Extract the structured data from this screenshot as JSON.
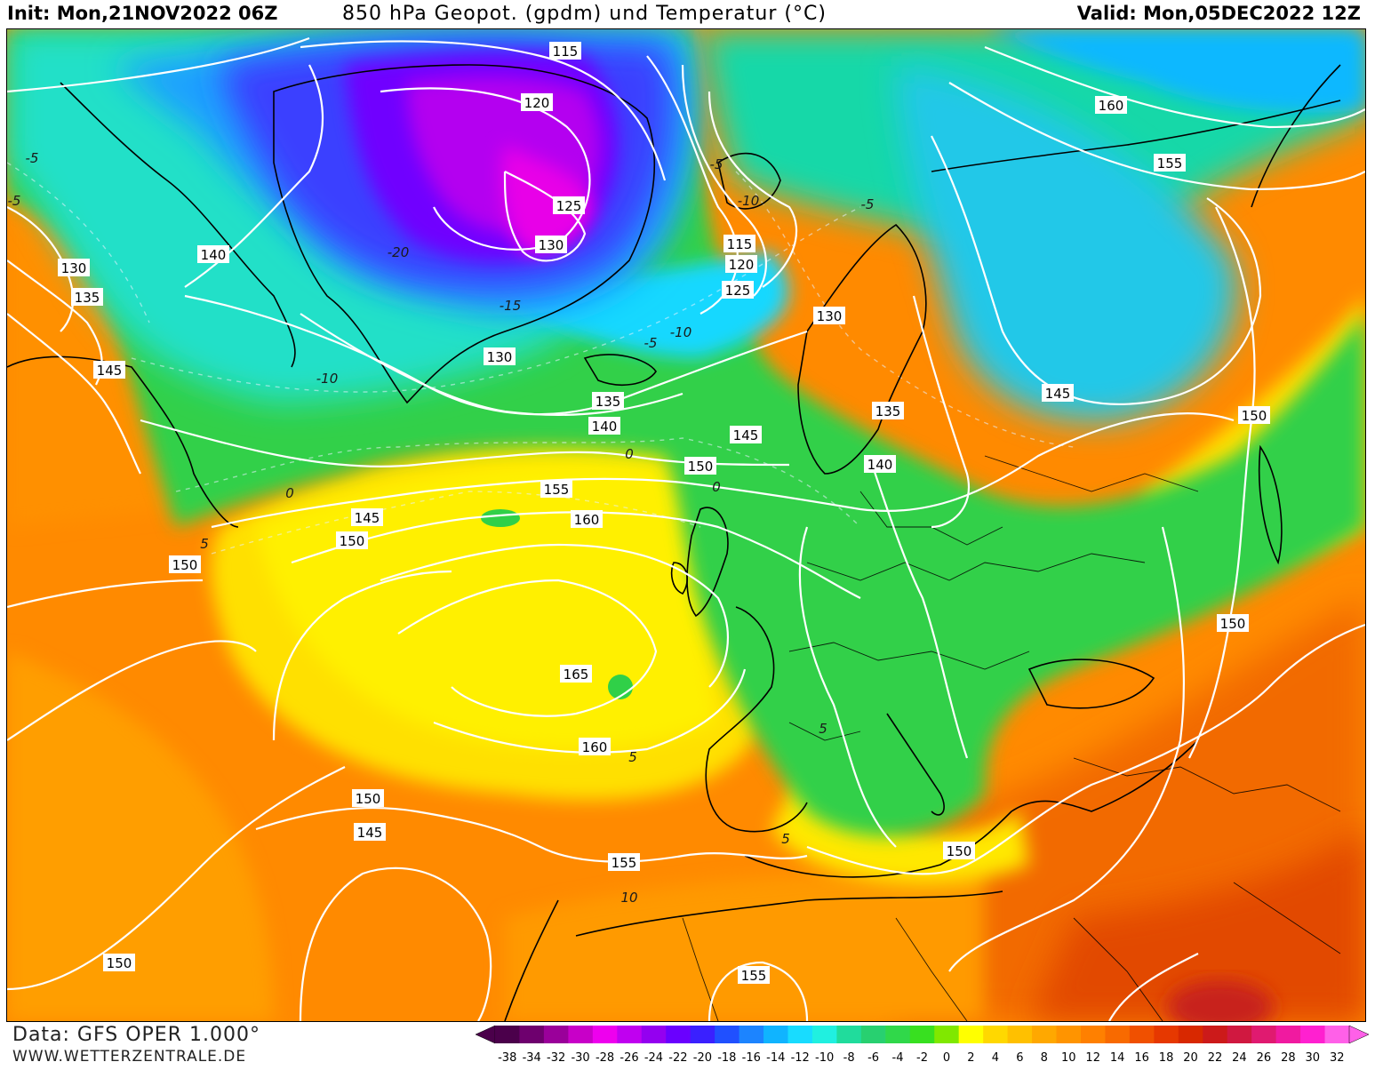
{
  "header": {
    "init": "Init: Mon,21NOV2022 06Z",
    "title": "850 hPa Geopot. (gpdm) und Temperatur (°C)",
    "valid": "Valid: Mon,05DEC2022 12Z"
  },
  "footer": {
    "source": "Data: GFS OPER 1.000°",
    "website": "WWW.WETTERZENTRALE.DE"
  },
  "legend": {
    "values": [
      "-38",
      "-34",
      "-32",
      "-30",
      "-28",
      "-26",
      "-24",
      "-22",
      "-20",
      "-18",
      "-16",
      "-14",
      "-12",
      "-10",
      "-8",
      "-6",
      "-4",
      "-2",
      "0",
      "2",
      "4",
      "6",
      "8",
      "10",
      "12",
      "14",
      "16",
      "18",
      "20",
      "22",
      "24",
      "26",
      "28",
      "30",
      "32"
    ],
    "colors": [
      "#4b004b",
      "#6e006e",
      "#9a009a",
      "#c800c8",
      "#ee00ee",
      "#c000f0",
      "#9400f0",
      "#6a00ff",
      "#3a20ff",
      "#2050ff",
      "#1c84ff",
      "#10b4ff",
      "#18dcff",
      "#20f0e0",
      "#20dc9c",
      "#28d070",
      "#30d84a",
      "#38e020",
      "#80e800",
      "#ffff00",
      "#ffd800",
      "#ffc000",
      "#ffa800",
      "#ff9400",
      "#ff8000",
      "#f86a00",
      "#f05000",
      "#e63800",
      "#d82800",
      "#cc1a1a",
      "#d01840",
      "#e01a70",
      "#f01aa0",
      "#ff20d0",
      "#ff60e8"
    ]
  },
  "map": {
    "geopotential_labels": [
      {
        "text": "115",
        "where": "north greenland"
      },
      {
        "text": "120",
        "where": "greenland"
      },
      {
        "text": "125",
        "where": "greenland centre"
      },
      {
        "text": "130",
        "where": "greenland centre"
      },
      {
        "text": "115",
        "where": "svalbard low"
      },
      {
        "text": "120",
        "where": "svalbard low"
      },
      {
        "text": "125",
        "where": "svalbard low"
      },
      {
        "text": "160",
        "where": "siberia"
      },
      {
        "text": "155",
        "where": "siberia"
      },
      {
        "text": "140",
        "where": "canada"
      },
      {
        "text": "130",
        "where": "labrador"
      },
      {
        "text": "135",
        "where": "labrador"
      },
      {
        "text": "145",
        "where": "newfoundland"
      },
      {
        "text": "130",
        "where": "iceland"
      },
      {
        "text": "135",
        "where": "iceland"
      },
      {
        "text": "140",
        "where": "north atlantic"
      },
      {
        "text": "145",
        "where": "norwegian sea"
      },
      {
        "text": "130",
        "where": "scandinavia"
      },
      {
        "text": "135",
        "where": "scandinavia"
      },
      {
        "text": "140",
        "where": "baltic"
      },
      {
        "text": "145",
        "where": "russia"
      },
      {
        "text": "150",
        "where": "kazakhstan"
      },
      {
        "text": "150",
        "where": "north sea"
      },
      {
        "text": "155",
        "where": "atlantic"
      },
      {
        "text": "160",
        "where": "atlantic"
      },
      {
        "text": "165",
        "where": "atlantic high"
      },
      {
        "text": "160",
        "where": "bay of biscay"
      },
      {
        "text": "145",
        "where": "west atlantic"
      },
      {
        "text": "150",
        "where": "west atlantic"
      },
      {
        "text": "150",
        "where": "west atlantic"
      },
      {
        "text": "150",
        "where": "mid atlantic"
      },
      {
        "text": "145",
        "where": "mid atlantic"
      },
      {
        "text": "155",
        "where": "north africa"
      },
      {
        "text": "150",
        "where": "mediterranean"
      },
      {
        "text": "150",
        "where": "middle east"
      },
      {
        "text": "150",
        "where": "south atlantic"
      },
      {
        "text": "155",
        "where": "sahara"
      }
    ],
    "temperature_labels": [
      {
        "text": "-5"
      },
      {
        "text": "-5"
      },
      {
        "text": "-20"
      },
      {
        "text": "-15"
      },
      {
        "text": "-5"
      },
      {
        "text": "-10"
      },
      {
        "text": "-10"
      },
      {
        "text": "-5"
      },
      {
        "text": "-10"
      },
      {
        "text": "-5"
      },
      {
        "text": "0"
      },
      {
        "text": "0"
      },
      {
        "text": "5"
      },
      {
        "text": "5"
      },
      {
        "text": "5"
      },
      {
        "text": "5"
      },
      {
        "text": "10"
      },
      {
        "text": "0"
      }
    ]
  }
}
